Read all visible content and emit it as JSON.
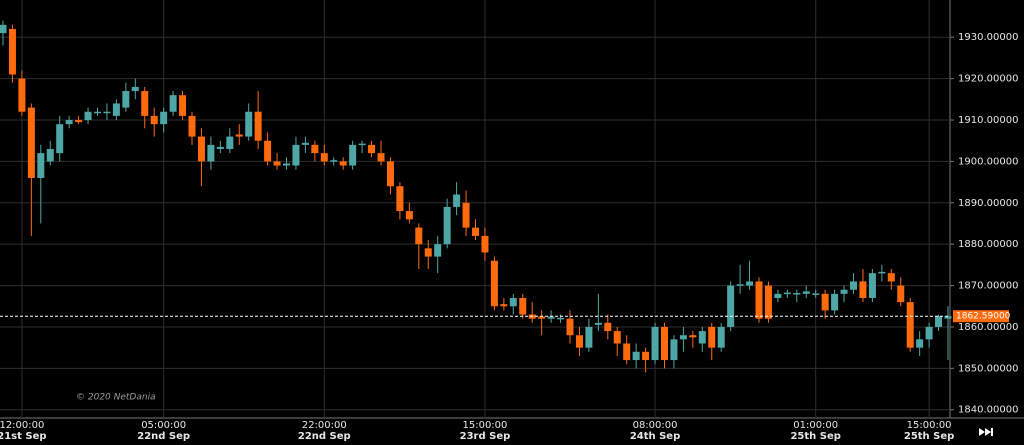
{
  "chart_data": {
    "type": "candlestick",
    "watermark": "© 2020 NetDania",
    "up_color": "#4fa6a6",
    "down_color": "#ff6a0d",
    "grid": true,
    "ylim": [
      1838,
      1939
    ],
    "yticks": [
      {
        "value": 1840,
        "label": "1840.00000"
      },
      {
        "value": 1850,
        "label": "1850.00000"
      },
      {
        "value": 1860,
        "label": "1860.00000"
      },
      {
        "value": 1870,
        "label": "1870.00000"
      },
      {
        "value": 1880,
        "label": "1880.00000"
      },
      {
        "value": 1890,
        "label": "1890.00000"
      },
      {
        "value": 1900,
        "label": "1900.00000"
      },
      {
        "value": 1910,
        "label": "1910.00000"
      },
      {
        "value": 1920,
        "label": "1920.00000"
      },
      {
        "value": 1930,
        "label": "1930.00000"
      }
    ],
    "current_price": {
      "value": 1862.59,
      "label": "1862.59000"
    },
    "categories": [
      null,
      null,
      "12:00:00",
      null,
      null,
      null,
      null,
      null,
      null,
      null,
      null,
      null,
      null,
      null,
      null,
      null,
      null,
      "05:00:00",
      null,
      null,
      null,
      null,
      null,
      null,
      null,
      null,
      null,
      null,
      null,
      null,
      null,
      null,
      null,
      null,
      "22:00:00",
      null,
      null,
      null,
      null,
      null,
      null,
      null,
      null,
      null,
      null,
      null,
      null,
      null,
      null,
      null,
      null,
      "15:00:00",
      null,
      null,
      null,
      null,
      null,
      null,
      null,
      null,
      null,
      null,
      null,
      null,
      null,
      null,
      null,
      null,
      null,
      "08:00:00",
      null,
      null,
      null,
      null,
      null,
      null,
      null,
      null,
      null,
      null,
      null,
      null,
      null,
      null,
      null,
      null,
      "01:00:00",
      null,
      null,
      null,
      null,
      null,
      null,
      null,
      null,
      null,
      null,
      null,
      "15:00:00",
      null,
      null
    ],
    "category_dates": [
      null,
      null,
      "21st Sep",
      null,
      null,
      null,
      null,
      null,
      null,
      null,
      null,
      null,
      null,
      null,
      null,
      null,
      null,
      "22nd Sep",
      null,
      null,
      null,
      null,
      null,
      null,
      null,
      null,
      null,
      null,
      null,
      null,
      null,
      null,
      null,
      null,
      "22nd Sep",
      null,
      null,
      null,
      null,
      null,
      null,
      null,
      null,
      null,
      null,
      null,
      null,
      null,
      null,
      null,
      null,
      "23rd Sep",
      null,
      null,
      null,
      null,
      null,
      null,
      null,
      null,
      null,
      null,
      null,
      null,
      null,
      null,
      null,
      null,
      null,
      "24th Sep",
      null,
      null,
      null,
      null,
      null,
      null,
      null,
      null,
      null,
      null,
      null,
      null,
      null,
      null,
      null,
      null,
      "25th Sep",
      null,
      null,
      null,
      null,
      null,
      null,
      null,
      null,
      null,
      null,
      null,
      "25th Sep",
      null,
      null
    ],
    "ohlc": [
      [
        1931,
        1934,
        1928,
        1933
      ],
      [
        1932,
        1933,
        1919,
        1921
      ],
      [
        1920,
        1922,
        1911,
        1912
      ],
      [
        1913,
        1914,
        1882,
        1896
      ],
      [
        1896,
        1904,
        1885,
        1902
      ],
      [
        1900,
        1905,
        1899,
        1903
      ],
      [
        1902,
        1911,
        1900,
        1909
      ],
      [
        1909,
        1911,
        1908,
        1910
      ],
      [
        1910,
        1911,
        1909,
        1909.5
      ],
      [
        1910,
        1913,
        1909,
        1912
      ],
      [
        1912,
        1913,
        1911,
        1912
      ],
      [
        1912,
        1914,
        1910,
        1912
      ],
      [
        1911,
        1915,
        1910,
        1914
      ],
      [
        1913,
        1919,
        1912,
        1917
      ],
      [
        1917,
        1920,
        1915,
        1918
      ],
      [
        1917,
        1918,
        1908,
        1911
      ],
      [
        1911,
        1913,
        1906,
        1909
      ],
      [
        1909,
        1913,
        1907,
        1912
      ],
      [
        1912,
        1917,
        1911,
        1916
      ],
      [
        1916,
        1917,
        1910,
        1911
      ],
      [
        1911,
        1912,
        1904,
        1906
      ],
      [
        1906,
        1908,
        1894,
        1900
      ],
      [
        1900,
        1906,
        1898,
        1904
      ],
      [
        1903,
        1905,
        1902,
        1903.5
      ],
      [
        1903,
        1908,
        1902,
        1906
      ],
      [
        1906.5,
        1909,
        1904,
        1906
      ],
      [
        1906,
        1914,
        1905,
        1912
      ],
      [
        1912,
        1917,
        1903,
        1905
      ],
      [
        1905,
        1907,
        1899,
        1900
      ],
      [
        1900,
        1902,
        1898,
        1899
      ],
      [
        1899,
        1901,
        1898,
        1899.5
      ],
      [
        1899,
        1906,
        1898,
        1904
      ],
      [
        1904,
        1906,
        1902,
        1904.5
      ],
      [
        1904,
        1905,
        1900,
        1902
      ],
      [
        1902,
        1904,
        1899,
        1900
      ],
      [
        1900,
        1901,
        1899,
        1900.3
      ],
      [
        1900,
        1901,
        1898,
        1899
      ],
      [
        1899,
        1905,
        1898,
        1904
      ],
      [
        1904,
        1905,
        1902,
        1904.3
      ],
      [
        1904,
        1905,
        1901,
        1902
      ],
      [
        1902,
        1905,
        1899,
        1900
      ],
      [
        1900,
        1901,
        1892,
        1894
      ],
      [
        1894,
        1895,
        1886,
        1888
      ],
      [
        1888,
        1890,
        1885,
        1886
      ],
      [
        1884,
        1885,
        1874,
        1880
      ],
      [
        1879,
        1881,
        1874,
        1877
      ],
      [
        1877,
        1882,
        1873,
        1880
      ],
      [
        1880,
        1891,
        1879,
        1889
      ],
      [
        1889,
        1895,
        1887,
        1892
      ],
      [
        1890,
        1893,
        1882,
        1884
      ],
      [
        1884,
        1886,
        1881,
        1882
      ],
      [
        1882,
        1884,
        1876,
        1878
      ],
      [
        1876,
        1877,
        1864,
        1865
      ],
      [
        1865.5,
        1867,
        1864,
        1865
      ],
      [
        1865,
        1868,
        1863,
        1867
      ],
      [
        1867,
        1868,
        1862,
        1863
      ],
      [
        1863,
        1866,
        1861,
        1862
      ],
      [
        1862.5,
        1864,
        1858,
        1862
      ],
      [
        1862,
        1864,
        1861,
        1862.5
      ],
      [
        1862,
        1863,
        1861,
        1862.2
      ],
      [
        1862,
        1864,
        1856,
        1858
      ],
      [
        1858,
        1860,
        1853,
        1855
      ],
      [
        1855,
        1862,
        1854,
        1860
      ],
      [
        1860.5,
        1868,
        1859,
        1861
      ],
      [
        1861,
        1863,
        1857,
        1859
      ],
      [
        1859,
        1860,
        1853,
        1856
      ],
      [
        1856,
        1858,
        1851,
        1852
      ],
      [
        1852,
        1856,
        1850,
        1854
      ],
      [
        1854,
        1855,
        1849,
        1852
      ],
      [
        1852,
        1861,
        1851,
        1860
      ],
      [
        1860,
        1861,
        1850,
        1852
      ],
      [
        1852,
        1858,
        1850,
        1857
      ],
      [
        1857,
        1860,
        1854,
        1858
      ],
      [
        1858,
        1859,
        1855,
        1857.5
      ],
      [
        1856,
        1860,
        1854,
        1859
      ],
      [
        1860,
        1861,
        1852,
        1855
      ],
      [
        1855,
        1861,
        1854,
        1860
      ],
      [
        1860,
        1871,
        1859,
        1870
      ],
      [
        1870,
        1875,
        1868,
        1870.3
      ],
      [
        1870,
        1876,
        1869,
        1871
      ],
      [
        1871,
        1872,
        1861,
        1862
      ],
      [
        1870,
        1871,
        1861,
        1862
      ],
      [
        1867,
        1869,
        1866,
        1868
      ],
      [
        1868,
        1869,
        1867,
        1868.3
      ],
      [
        1868,
        1869,
        1866,
        1868.2
      ],
      [
        1868,
        1870,
        1867,
        1868.6
      ],
      [
        1868,
        1869,
        1867,
        1868.1
      ],
      [
        1868,
        1869,
        1862,
        1864
      ],
      [
        1864,
        1869,
        1863,
        1868
      ],
      [
        1868,
        1870,
        1866,
        1869
      ],
      [
        1869,
        1873,
        1868,
        1871
      ],
      [
        1871,
        1874,
        1866,
        1867
      ],
      [
        1867,
        1874,
        1866,
        1873
      ],
      [
        1873,
        1875,
        1871,
        1873.3
      ],
      [
        1873,
        1874,
        1869,
        1871
      ],
      [
        1870,
        1872,
        1865,
        1866
      ],
      [
        1866,
        1867,
        1854,
        1855
      ],
      [
        1855,
        1859,
        1853,
        1857
      ],
      [
        1857,
        1861,
        1855,
        1860
      ],
      [
        1860,
        1863,
        1859,
        1862.59
      ],
      [
        1862,
        1865,
        1852,
        1862.59
      ]
    ]
  }
}
